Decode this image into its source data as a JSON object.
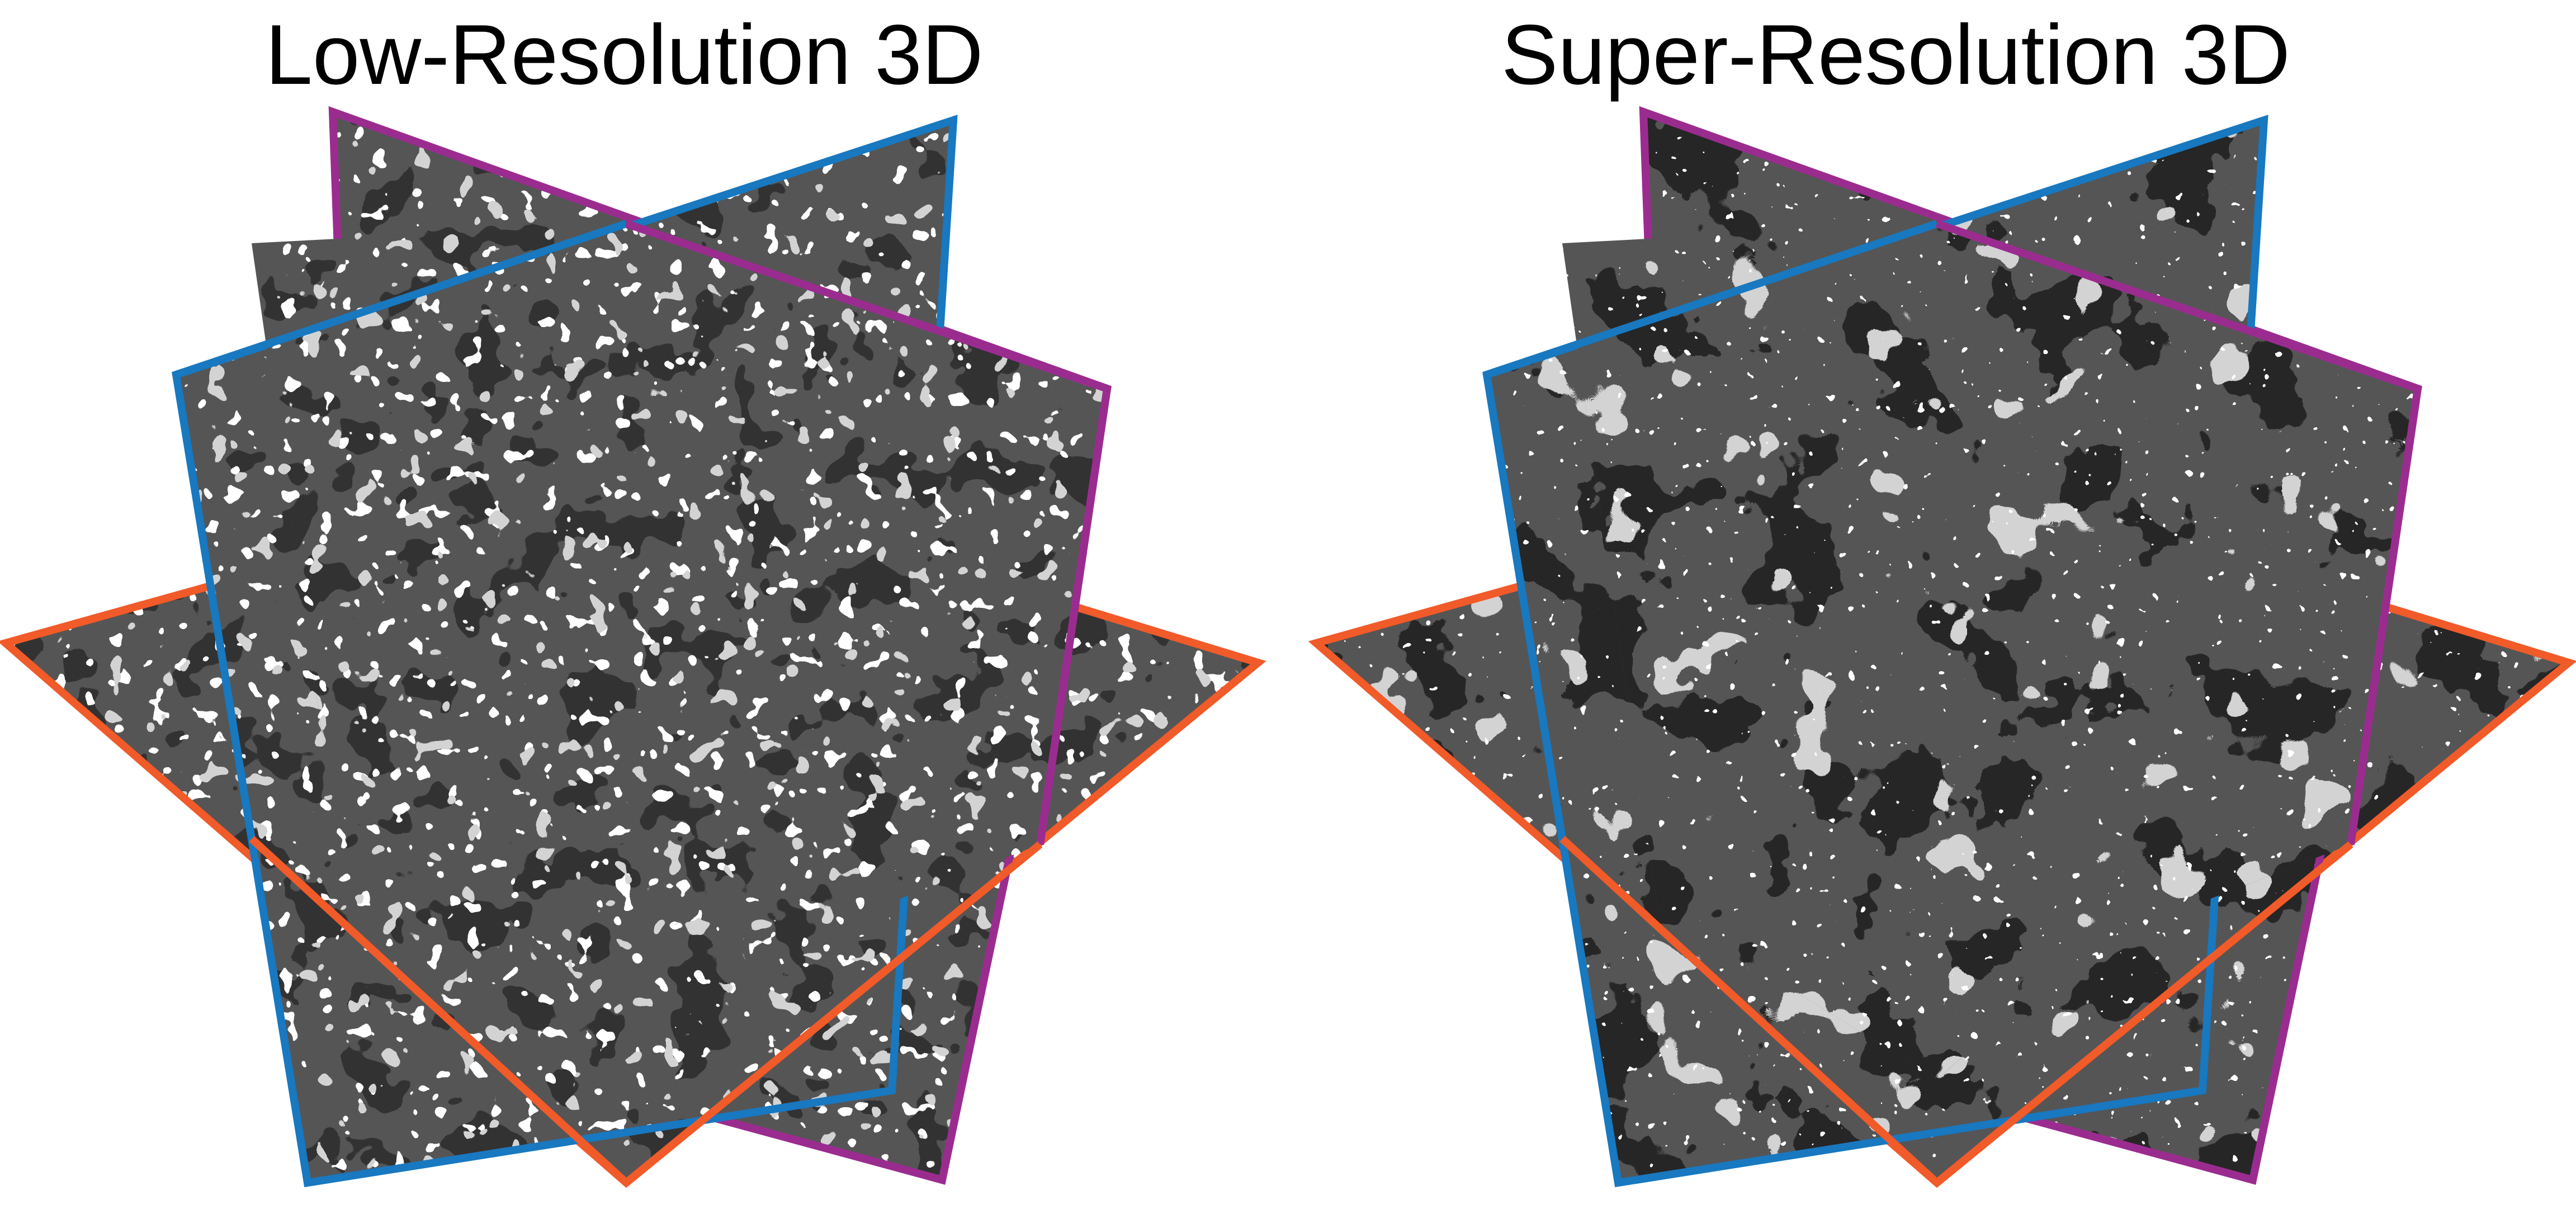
{
  "panels": [
    {
      "id": "low",
      "title": "Low-Resolution 3D",
      "noise": "coarse"
    },
    {
      "id": "super",
      "title": "Super-Resolution 3D",
      "noise": "fine"
    }
  ],
  "colors": {
    "matrix": "#555555",
    "pore": "#070707",
    "mineral_light": "#a5a5a5",
    "mineral_white": "#ffffff",
    "frame_xy": "#f15a29",
    "frame_xz": "#1878c0",
    "frame_yz": "#9b2c8f"
  }
}
